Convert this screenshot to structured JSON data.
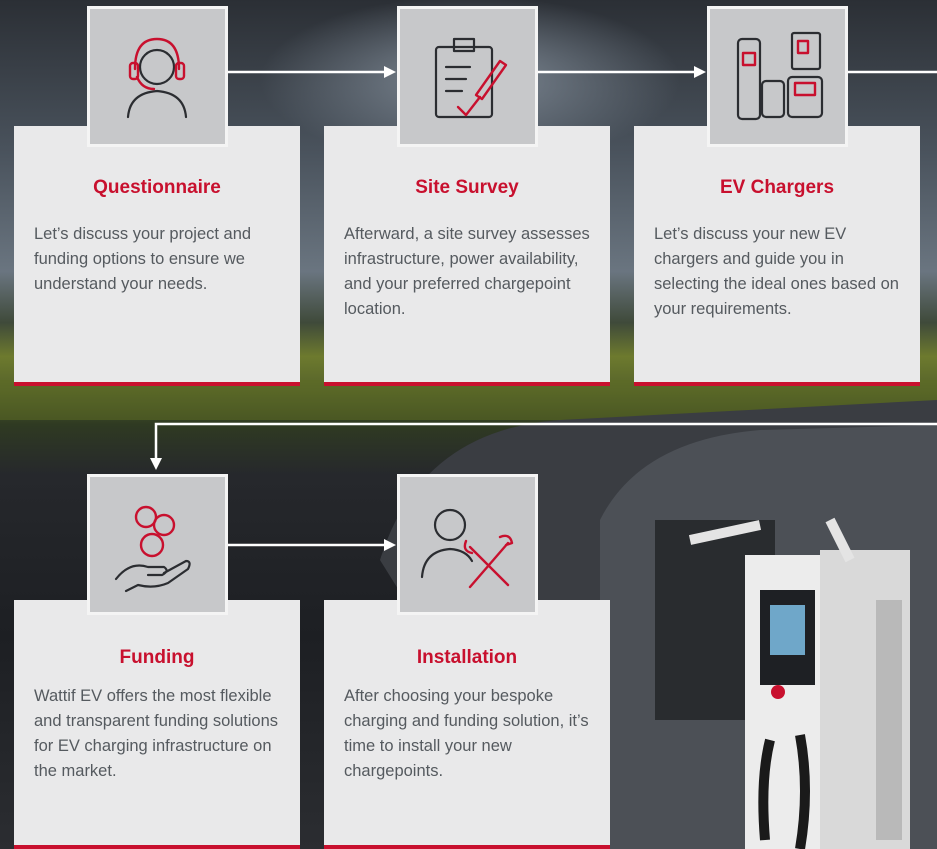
{
  "steps": [
    {
      "title": "Questionnaire",
      "text": "Let’s discuss your project and funding options to ensure we understand your needs."
    },
    {
      "title": "Site Survey",
      "text": "Afterward, a site survey assesses infrastructure, power availability, and your preferred chargepoint location."
    },
    {
      "title": "EV Chargers",
      "text": "Let’s discuss your new EV chargers and guide you in selecting the ideal ones based on your requirements."
    },
    {
      "title": "Funding",
      "text": "Wattif EV offers the most flexible and transparent funding solutions for EV charging infrastructure on the market."
    },
    {
      "title": "Installation",
      "text": "After choosing your bespoke charging and funding solution, it’s time to install your new chargepoints."
    }
  ]
}
